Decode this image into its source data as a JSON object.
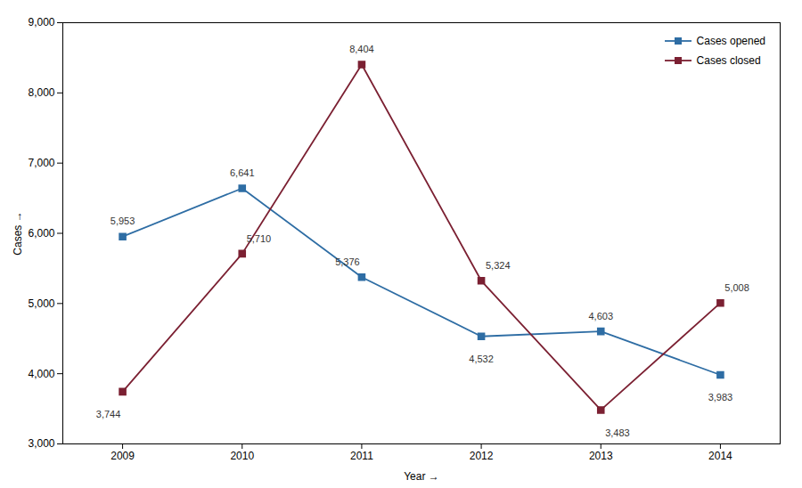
{
  "chart_data": {
    "type": "line",
    "x": [
      2009,
      2010,
      2011,
      2012,
      2013,
      2014
    ],
    "series": [
      {
        "name": "Cases opened",
        "color": "#2e6da4",
        "values": [
          5953,
          6641,
          5376,
          4532,
          4603,
          3983
        ],
        "value_labels": [
          "5,953",
          "6,641",
          "5,376",
          "4,532",
          "4,603",
          "3,983"
        ]
      },
      {
        "name": "Cases closed",
        "color": "#7b2032",
        "values": [
          3744,
          5710,
          8404,
          5324,
          3483,
          5008
        ],
        "value_labels": [
          "3,744",
          "5,710",
          "8,404",
          "5,324",
          "3,483",
          "5,008"
        ]
      }
    ],
    "xlabel": "Year",
    "ylabel": "Cases",
    "xlim": [
      2008.5,
      2014.5
    ],
    "xticks": [
      2009,
      2010,
      2011,
      2012,
      2013,
      2014
    ],
    "ylim": [
      3000,
      9000
    ],
    "yticks": [
      {
        "value": 3000,
        "label": "3,000"
      },
      {
        "value": 4000,
        "label": "4,000"
      },
      {
        "value": 5000,
        "label": "5,000"
      },
      {
        "value": 6000,
        "label": "6,000"
      },
      {
        "value": 7000,
        "label": "7,000"
      },
      {
        "value": 8000,
        "label": "8,000"
      },
      {
        "value": 9000,
        "label": "9,000"
      }
    ],
    "marker": "square",
    "data_labels": true,
    "legend": "upper right",
    "grid": false
  }
}
